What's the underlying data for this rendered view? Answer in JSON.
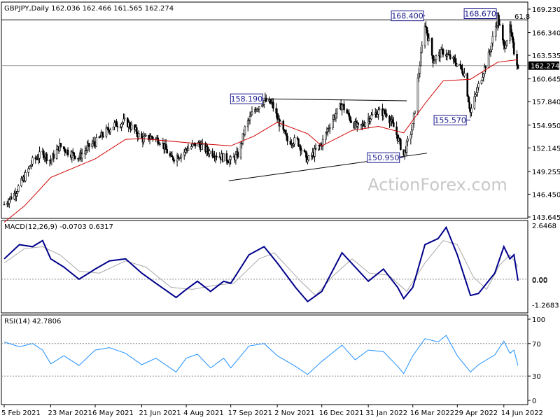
{
  "chart_data": [
    {
      "type": "candlestick",
      "title": "GBPJPY,Daily  162.036 162.466 161.565 162.274",
      "symbol": "GBPJPY",
      "timeframe": "Daily",
      "ohlc_last": {
        "open": 162.036,
        "high": 162.466,
        "low": 161.565,
        "close": 162.274
      },
      "current_price": "162.274",
      "watermark": "ActionForex.com",
      "fib_label": "61.8",
      "ylim": [
        143.645,
        169.23
      ],
      "y_ticks": [
        "169.230",
        "166.340",
        "163.535",
        "160.645",
        "157.840",
        "154.950",
        "152.145",
        "149.255",
        "146.450",
        "143.645"
      ],
      "x_ticks": [
        "5 Feb 2021",
        "23 Mar 2021",
        "6 May 2021",
        "21 Jun 2021",
        "4 Aug 2021",
        "17 Sep 2021",
        "2 Nov 2021",
        "16 Dec 2021",
        "31 Jan 2022",
        "16 Mar 2022",
        "29 Apr 2022",
        "14 Jun 2022"
      ],
      "annotations": [
        {
          "text": "168.400",
          "value": 168.4,
          "date": "2022-03-28"
        },
        {
          "text": "168.670",
          "value": 168.67,
          "date": "2022-06-08"
        },
        {
          "text": "158.190",
          "value": 158.19,
          "date": "2021-10-20"
        },
        {
          "text": "150.950",
          "value": 150.95,
          "date": "2022-03-07"
        },
        {
          "text": "155.570",
          "value": 155.57,
          "date": "2022-05-12"
        }
      ],
      "close_path": [
        [
          "2021-02-05",
          145.2
        ],
        [
          "2021-02-15",
          146.5
        ],
        [
          "2021-02-25",
          148.5
        ],
        [
          "2021-03-05",
          150.5
        ],
        [
          "2021-03-15",
          151.5
        ],
        [
          "2021-03-23",
          150.6
        ],
        [
          "2021-04-01",
          152.4
        ],
        [
          "2021-04-10",
          151.6
        ],
        [
          "2021-04-20",
          151.0
        ],
        [
          "2021-05-01",
          152.5
        ],
        [
          "2021-05-06",
          152.8
        ],
        [
          "2021-05-15",
          154.0
        ],
        [
          "2021-05-25",
          155.0
        ],
        [
          "2021-06-05",
          155.4
        ],
        [
          "2021-06-15",
          154.2
        ],
        [
          "2021-06-21",
          153.2
        ],
        [
          "2021-07-01",
          153.5
        ],
        [
          "2021-07-10",
          153.0
        ],
        [
          "2021-07-20",
          150.8
        ],
        [
          "2021-08-01",
          151.5
        ],
        [
          "2021-08-04",
          152.0
        ],
        [
          "2021-08-15",
          152.7
        ],
        [
          "2021-08-25",
          151.8
        ],
        [
          "2021-09-05",
          151.2
        ],
        [
          "2021-09-17",
          150.6
        ],
        [
          "2021-09-25",
          151.4
        ],
        [
          "2021-10-01",
          154.5
        ],
        [
          "2021-10-10",
          156.8
        ],
        [
          "2021-10-20",
          158.0
        ],
        [
          "2021-10-28",
          157.5
        ],
        [
          "2021-11-02",
          155.8
        ],
        [
          "2021-11-12",
          153.0
        ],
        [
          "2021-11-22",
          153.0
        ],
        [
          "2021-12-02",
          150.6
        ],
        [
          "2021-12-16",
          152.7
        ],
        [
          "2021-12-26",
          155.6
        ],
        [
          "2022-01-05",
          157.5
        ],
        [
          "2022-01-15",
          155.3
        ],
        [
          "2022-01-22",
          154.5
        ],
        [
          "2022-01-31",
          155.8
        ],
        [
          "2022-02-10",
          156.6
        ],
        [
          "2022-02-18",
          156.4
        ],
        [
          "2022-02-26",
          154.5
        ],
        [
          "2022-03-07",
          151.3
        ],
        [
          "2022-03-16",
          154.8
        ],
        [
          "2022-03-21",
          160.5
        ],
        [
          "2022-03-28",
          167.5
        ],
        [
          "2022-04-05",
          163.0
        ],
        [
          "2022-04-15",
          164.0
        ],
        [
          "2022-04-29",
          162.5
        ],
        [
          "2022-05-06",
          161.3
        ],
        [
          "2022-05-12",
          156.5
        ],
        [
          "2022-05-20",
          159.8
        ],
        [
          "2022-05-30",
          163.5
        ],
        [
          "2022-06-08",
          168.2
        ],
        [
          "2022-06-14",
          164.5
        ],
        [
          "2022-06-20",
          166.8
        ],
        [
          "2022-06-24",
          164.0
        ],
        [
          "2022-06-28",
          162.274
        ]
      ],
      "ma_path": [
        [
          "2021-02-05",
          143.0
        ],
        [
          "2021-02-25",
          145.0
        ],
        [
          "2021-03-23",
          148.5
        ],
        [
          "2021-05-06",
          150.8
        ],
        [
          "2021-06-05",
          153.2
        ],
        [
          "2021-06-21",
          153.3
        ],
        [
          "2021-08-04",
          152.8
        ],
        [
          "2021-09-17",
          152.4
        ],
        [
          "2021-10-10",
          153.6
        ],
        [
          "2021-11-02",
          155.3
        ],
        [
          "2021-12-02",
          153.9
        ],
        [
          "2021-12-16",
          152.4
        ],
        [
          "2022-01-15",
          154.3
        ],
        [
          "2022-02-10",
          154.8
        ],
        [
          "2022-03-07",
          154.0
        ],
        [
          "2022-03-28",
          157.6
        ],
        [
          "2022-04-15",
          160.4
        ],
        [
          "2022-05-12",
          160.6
        ],
        [
          "2022-06-08",
          162.7
        ],
        [
          "2022-06-28",
          163.0
        ]
      ],
      "resistance_line": [
        [
          "2021-10-20",
          158.19
        ],
        [
          "2022-03-10",
          157.95
        ]
      ],
      "support_line": [
        [
          "2021-09-15",
          148.1
        ],
        [
          "2022-03-30",
          151.5
        ]
      ],
      "fib_line": 167.9,
      "current_line": 162.274
    },
    {
      "type": "line",
      "title": "MACD(12,26,9) -0.0703 0.6317",
      "ylim": [
        -1.45,
        2.6468
      ],
      "y_ticks": [
        "2.6468",
        "0.00",
        "0.00",
        "-1.2683"
      ],
      "series": [
        {
          "name": "MACD",
          "color": "#00008b",
          "points": [
            [
              "2021-02-05",
              1.0
            ],
            [
              "2021-02-20",
              1.7
            ],
            [
              "2021-03-05",
              1.6
            ],
            [
              "2021-03-15",
              1.9
            ],
            [
              "2021-03-23",
              1.0
            ],
            [
              "2021-04-05",
              0.6
            ],
            [
              "2021-04-20",
              0.0
            ],
            [
              "2021-05-06",
              0.5
            ],
            [
              "2021-05-20",
              0.9
            ],
            [
              "2021-06-05",
              1.0
            ],
            [
              "2021-06-21",
              0.3
            ],
            [
              "2021-07-05",
              -0.2
            ],
            [
              "2021-07-25",
              -0.9
            ],
            [
              "2021-08-04",
              -0.5
            ],
            [
              "2021-08-15",
              -0.1
            ],
            [
              "2021-08-28",
              -0.6
            ],
            [
              "2021-09-10",
              -0.1
            ],
            [
              "2021-09-17",
              -0.2
            ],
            [
              "2021-10-05",
              1.2
            ],
            [
              "2021-10-20",
              1.6
            ],
            [
              "2021-11-02",
              0.8
            ],
            [
              "2021-11-20",
              -0.4
            ],
            [
              "2021-12-02",
              -1.1
            ],
            [
              "2021-12-16",
              -0.6
            ],
            [
              "2022-01-05",
              1.3
            ],
            [
              "2022-01-18",
              0.6
            ],
            [
              "2022-01-31",
              -0.1
            ],
            [
              "2022-02-15",
              0.5
            ],
            [
              "2022-03-01",
              -0.4
            ],
            [
              "2022-03-07",
              -0.95
            ],
            [
              "2022-03-16",
              -0.4
            ],
            [
              "2022-03-28",
              1.7
            ],
            [
              "2022-04-10",
              2.0
            ],
            [
              "2022-04-18",
              2.55
            ],
            [
              "2022-04-29",
              1.2
            ],
            [
              "2022-05-12",
              -0.8
            ],
            [
              "2022-05-20",
              -0.7
            ],
            [
              "2022-06-05",
              0.3
            ],
            [
              "2022-06-14",
              1.6
            ],
            [
              "2022-06-20",
              1.0
            ],
            [
              "2022-06-24",
              1.2
            ],
            [
              "2022-06-28",
              -0.07
            ]
          ]
        },
        {
          "name": "Signal",
          "color": "#9a9a9a",
          "points": [
            [
              "2021-02-05",
              0.8
            ],
            [
              "2021-02-25",
              1.5
            ],
            [
              "2021-03-15",
              1.6
            ],
            [
              "2021-04-01",
              1.2
            ],
            [
              "2021-04-20",
              0.4
            ],
            [
              "2021-05-10",
              0.3
            ],
            [
              "2021-06-05",
              0.9
            ],
            [
              "2021-06-25",
              0.6
            ],
            [
              "2021-07-20",
              -0.4
            ],
            [
              "2021-08-10",
              -0.5
            ],
            [
              "2021-09-01",
              -0.3
            ],
            [
              "2021-09-20",
              -0.2
            ],
            [
              "2021-10-15",
              1.0
            ],
            [
              "2021-10-30",
              1.3
            ],
            [
              "2021-11-25",
              -0.1
            ],
            [
              "2021-12-10",
              -0.8
            ],
            [
              "2021-12-28",
              0.2
            ],
            [
              "2022-01-15",
              1.0
            ],
            [
              "2022-02-01",
              0.3
            ],
            [
              "2022-02-20",
              0.2
            ],
            [
              "2022-03-10",
              -0.6
            ],
            [
              "2022-03-28",
              0.8
            ],
            [
              "2022-04-15",
              1.9
            ],
            [
              "2022-04-29",
              1.7
            ],
            [
              "2022-05-15",
              0.1
            ],
            [
              "2022-05-28",
              -0.5
            ],
            [
              "2022-06-10",
              0.7
            ],
            [
              "2022-06-20",
              1.2
            ],
            [
              "2022-06-28",
              0.63
            ]
          ]
        }
      ]
    },
    {
      "type": "line",
      "title": "RSI(14) 42.7806",
      "ylim": [
        0,
        100
      ],
      "y_ticks": [
        "100",
        "70",
        "30",
        "0"
      ],
      "levels": [
        70,
        30
      ],
      "series": [
        {
          "name": "RSI",
          "color": "#1e90ff",
          "points": [
            [
              "2021-02-05",
              72
            ],
            [
              "2021-02-20",
              66
            ],
            [
              "2021-03-05",
              70
            ],
            [
              "2021-03-15",
              62
            ],
            [
              "2021-03-23",
              45
            ],
            [
              "2021-04-05",
              55
            ],
            [
              "2021-04-20",
              43
            ],
            [
              "2021-05-06",
              62
            ],
            [
              "2021-05-20",
              65
            ],
            [
              "2021-06-05",
              58
            ],
            [
              "2021-06-21",
              44
            ],
            [
              "2021-07-05",
              52
            ],
            [
              "2021-07-25",
              35
            ],
            [
              "2021-08-04",
              52
            ],
            [
              "2021-08-15",
              57
            ],
            [
              "2021-08-28",
              40
            ],
            [
              "2021-09-10",
              52
            ],
            [
              "2021-09-17",
              40
            ],
            [
              "2021-10-05",
              67
            ],
            [
              "2021-10-20",
              70
            ],
            [
              "2021-11-02",
              55
            ],
            [
              "2021-11-20",
              42
            ],
            [
              "2021-12-02",
              32
            ],
            [
              "2021-12-16",
              48
            ],
            [
              "2022-01-05",
              68
            ],
            [
              "2022-01-18",
              50
            ],
            [
              "2022-01-31",
              62
            ],
            [
              "2022-02-15",
              60
            ],
            [
              "2022-03-01",
              42
            ],
            [
              "2022-03-07",
              33
            ],
            [
              "2022-03-16",
              55
            ],
            [
              "2022-03-28",
              76
            ],
            [
              "2022-04-10",
              72
            ],
            [
              "2022-04-18",
              80
            ],
            [
              "2022-04-29",
              55
            ],
            [
              "2022-05-12",
              35
            ],
            [
              "2022-05-20",
              44
            ],
            [
              "2022-06-05",
              56
            ],
            [
              "2022-06-14",
              73
            ],
            [
              "2022-06-20",
              58
            ],
            [
              "2022-06-24",
              62
            ],
            [
              "2022-06-28",
              42.78
            ]
          ]
        }
      ]
    }
  ]
}
